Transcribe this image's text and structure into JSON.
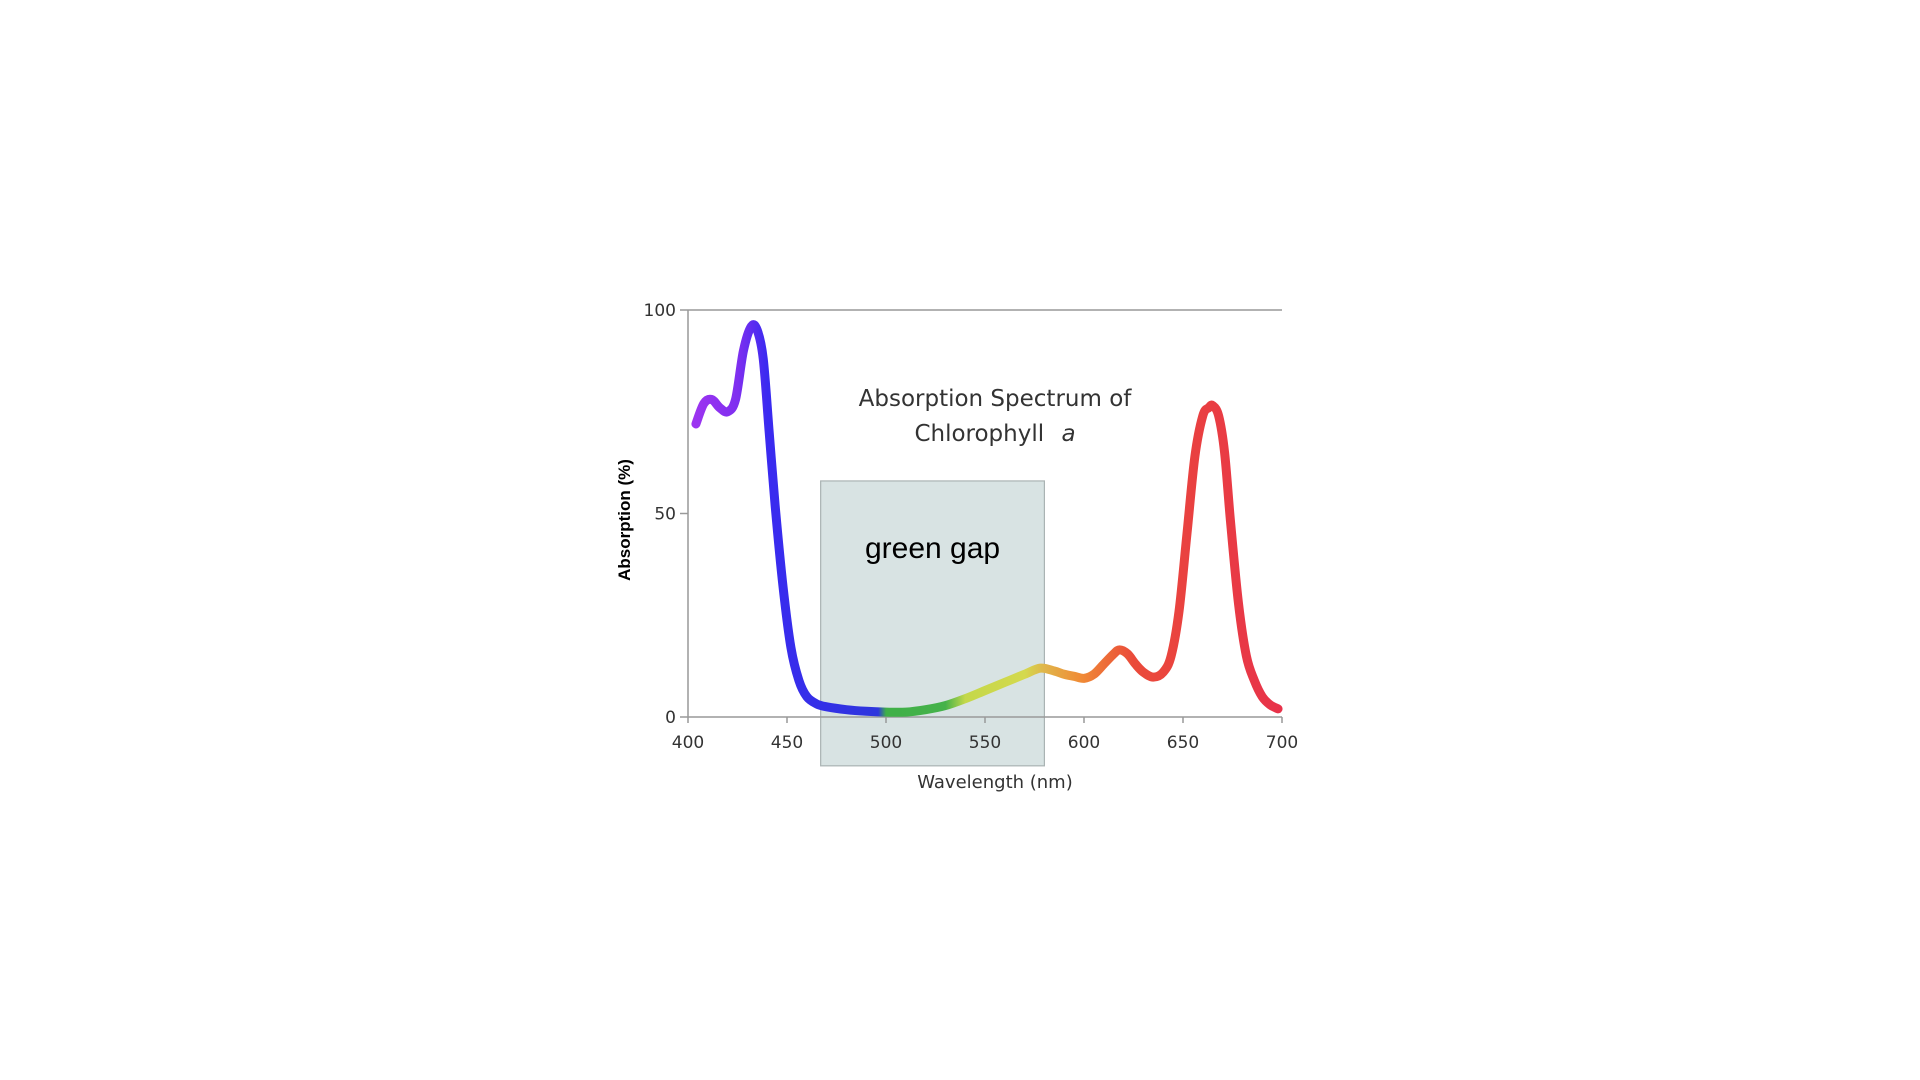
{
  "chart_data": {
    "type": "line",
    "title_line1": "Absorption Spectrum of",
    "title_line2_text": "Chlorophyll",
    "title_line2_italic": "a",
    "xlabel": "Wavelength (nm)",
    "ylabel": "Absorption (%)",
    "xlim": [
      400,
      700
    ],
    "ylim": [
      0,
      100
    ],
    "x_ticks": [
      400,
      450,
      500,
      550,
      600,
      650,
      700
    ],
    "y_ticks": [
      0,
      50,
      100
    ],
    "grid": "top-line-only",
    "series": [
      {
        "x": [
          404,
          408,
          412,
          416,
          420,
          424,
          428,
          432,
          435,
          438,
          441,
          444,
          448,
          452,
          456,
          460,
          465,
          470,
          480,
          490,
          500,
          510,
          520,
          530,
          540,
          550,
          560,
          570,
          578,
          585,
          590,
          595,
          600,
          605,
          610,
          615,
          618,
          622,
          626,
          630,
          635,
          640,
          644,
          648,
          652,
          656,
          660,
          663,
          665,
          668,
          671,
          674,
          678,
          682,
          686,
          690,
          694,
          698
        ],
        "y": [
          72,
          77,
          78,
          76,
          75,
          78,
          90,
          96,
          95,
          88,
          70,
          52,
          32,
          17,
          9,
          5,
          3.2,
          2.5,
          1.8,
          1.4,
          1.2,
          1.2,
          1.8,
          2.8,
          4.5,
          6.5,
          8.5,
          10.5,
          12,
          11.3,
          10.5,
          10,
          9.5,
          10.5,
          13,
          15.5,
          16.5,
          15.5,
          13,
          11,
          9.8,
          11,
          15,
          26,
          45,
          64,
          74,
          76,
          76.5,
          74,
          65,
          48,
          28,
          15,
          9,
          5,
          3,
          2
        ]
      }
    ],
    "color_stops": [
      {
        "x": 400,
        "color": "#a135f0"
      },
      {
        "x": 425,
        "color": "#7f2ff0"
      },
      {
        "x": 440,
        "color": "#3a2af0"
      },
      {
        "x": 496,
        "color": "#2e36dd"
      },
      {
        "x": 500,
        "color": "#3fb048"
      },
      {
        "x": 530,
        "color": "#45b24a"
      },
      {
        "x": 540,
        "color": "#c4d84a"
      },
      {
        "x": 570,
        "color": "#d4d94e"
      },
      {
        "x": 580,
        "color": "#e0b54a"
      },
      {
        "x": 598,
        "color": "#f08c36"
      },
      {
        "x": 625,
        "color": "#ea4a3a"
      },
      {
        "x": 700,
        "color": "#e8324a"
      }
    ],
    "gap_region": {
      "x_start": 467,
      "x_end": 580,
      "y_bottom": -12,
      "y_top": 58,
      "label": "green gap"
    },
    "colors": {
      "axis": "#999999",
      "gap_fill": "#d8e3e3",
      "gap_stroke": "#aab3b3"
    }
  }
}
